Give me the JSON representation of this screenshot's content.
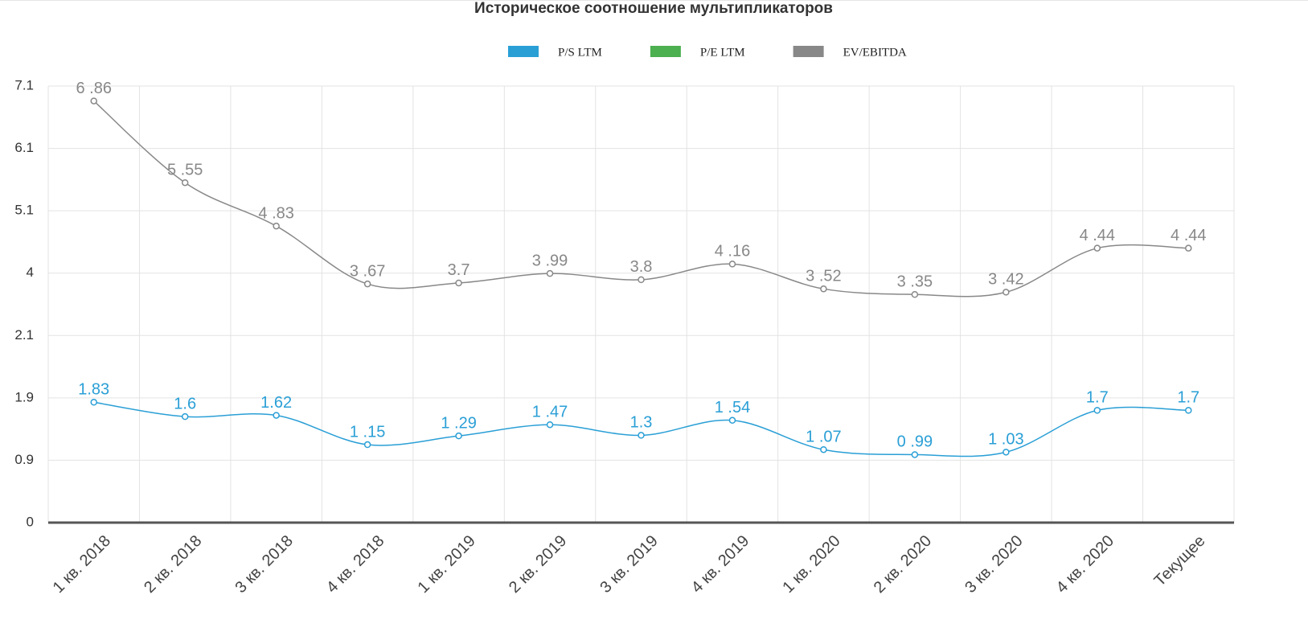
{
  "chart_data": {
    "type": "line",
    "title": "Историческое соотношение мультипликаторов",
    "categories": [
      "1 кв. 2018",
      "2 кв. 2018",
      "3 кв. 2018",
      "4 кв. 2018",
      "1 кв. 2019",
      "2 кв. 2019",
      "3 кв. 2019",
      "4 кв. 2019",
      "1 кв. 2020",
      "2 кв. 2020",
      "3 кв. 2020",
      "4 кв. 2020",
      "Текущее"
    ],
    "series": [
      {
        "name": "P/S LTM",
        "color": "#2a9fd6",
        "values": [
          1.83,
          1.6,
          1.62,
          1.15,
          1.29,
          1.47,
          1.3,
          1.54,
          1.07,
          0.99,
          1.03,
          1.7,
          1.7
        ],
        "value_labels": [
          "1.83",
          "1.6",
          "1.62",
          "1 .15",
          "1 .29",
          "1 .47",
          "1.3",
          "1 .54",
          "1 .07",
          "0 .99",
          "1 .03",
          "1.7",
          "1.7"
        ]
      },
      {
        "name": "P/E LTM",
        "color": "#4caf50",
        "values": [
          null,
          null,
          null,
          null,
          null,
          null,
          null,
          null,
          null,
          null,
          null,
          null,
          null
        ]
      },
      {
        "name": "EV/EBITDA",
        "color": "#888888",
        "values": [
          6.86,
          5.55,
          4.83,
          3.67,
          3.7,
          3.99,
          3.8,
          4.16,
          3.52,
          3.35,
          3.42,
          4.44,
          4.44
        ],
        "value_labels": [
          "6 .86",
          "5 .55",
          "4 .83",
          "3 .67",
          "3.7",
          "3 .99",
          "3.8",
          "4 .16",
          "3 .52",
          "3 .35",
          "3 .42",
          "4 .44",
          "4 .44"
        ]
      }
    ],
    "ylim": [
      0,
      7.1
    ],
    "yticks": [
      0,
      0.9,
      1.9,
      2.1,
      4,
      5.1,
      6.1,
      7.1
    ],
    "grid": true
  }
}
